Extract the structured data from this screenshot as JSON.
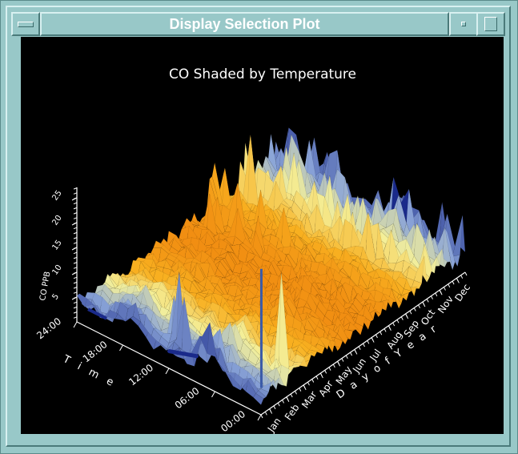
{
  "window": {
    "title": "Display Selection Plot"
  },
  "chart_data": {
    "type": "surface",
    "title": "CO Shaded by Temperature",
    "x_axis": {
      "label": "Day of Year",
      "label_spaced": "D a y   o f   Y e a r",
      "ticks": [
        "Jan",
        "Feb",
        "Mar",
        "Apr",
        "May",
        "Jun",
        "Jul",
        "Aug",
        "Sep",
        "Oct",
        "Nov",
        "Dec"
      ]
    },
    "y_axis": {
      "label": "Time",
      "label_spaced": "T i m e",
      "ticks": [
        "00:00",
        "06:00",
        "12:00",
        "18:00",
        "24:00"
      ]
    },
    "z_axis": {
      "label": "CO PPB",
      "ticks": [
        "5",
        "10",
        "15",
        "20",
        "25"
      ],
      "range": [
        0,
        27
      ]
    },
    "shading": "temperature",
    "colormap": [
      "#1a2a8a",
      "#8aa4d8",
      "#f4f09a",
      "#f8b020",
      "#f08a10"
    ]
  }
}
